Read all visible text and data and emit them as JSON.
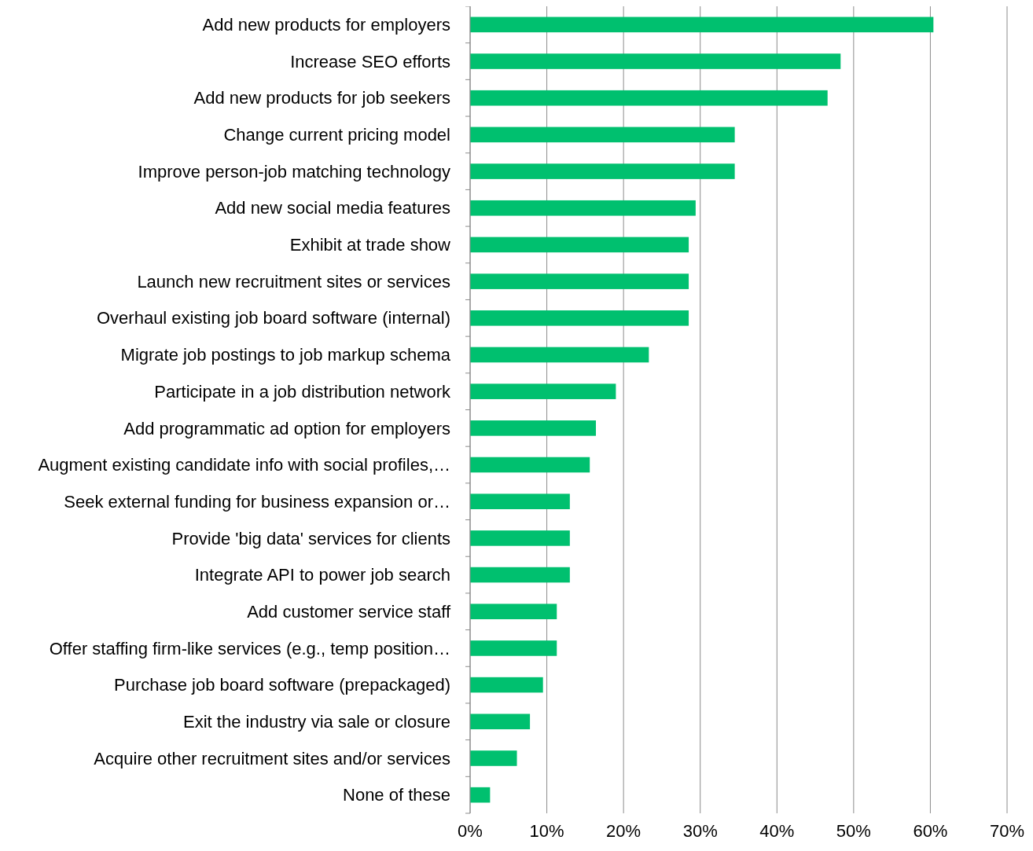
{
  "chart_data": {
    "type": "bar",
    "orientation": "horizontal",
    "categories": [
      "Add new products for employers",
      "Increase SEO efforts",
      "Add new products for job seekers",
      "Change current pricing model",
      "Improve person-job matching technology",
      "Add new social media features",
      "Exhibit at trade show",
      "Launch new recruitment sites or services",
      "Overhaul existing job board software (internal)",
      "Migrate job postings to job markup schema",
      "Participate in a job distribution network",
      "Add programmatic ad option for employers",
      "Augment existing candidate info with social profiles,…",
      "Seek external funding for business expansion or…",
      "Provide 'big data' services for clients",
      "Integrate API to power job search",
      "Add customer service staff",
      "Offer staffing firm-like services (e.g., temp position…",
      "Purchase job board software (prepackaged)",
      "Exit the industry via sale or closure",
      "Acquire other recruitment sites and/or services",
      "None of these"
    ],
    "values": [
      60.4,
      48.3,
      46.6,
      34.5,
      34.5,
      29.4,
      28.5,
      28.5,
      28.5,
      23.3,
      19.0,
      16.4,
      15.6,
      13.0,
      13.0,
      13.0,
      11.3,
      11.3,
      9.5,
      7.8,
      6.1,
      2.6
    ],
    "color": "#00c06f",
    "xlim": [
      0,
      70
    ],
    "xticks": [
      {
        "value": 0,
        "label": "0%"
      },
      {
        "value": 10,
        "label": "10%"
      },
      {
        "value": 20,
        "label": "20%"
      },
      {
        "value": 30,
        "label": "30%"
      },
      {
        "value": 40,
        "label": "40%"
      },
      {
        "value": 50,
        "label": "50%"
      },
      {
        "value": 60,
        "label": "60%"
      },
      {
        "value": 70,
        "label": "70%"
      }
    ],
    "grid": "x"
  }
}
